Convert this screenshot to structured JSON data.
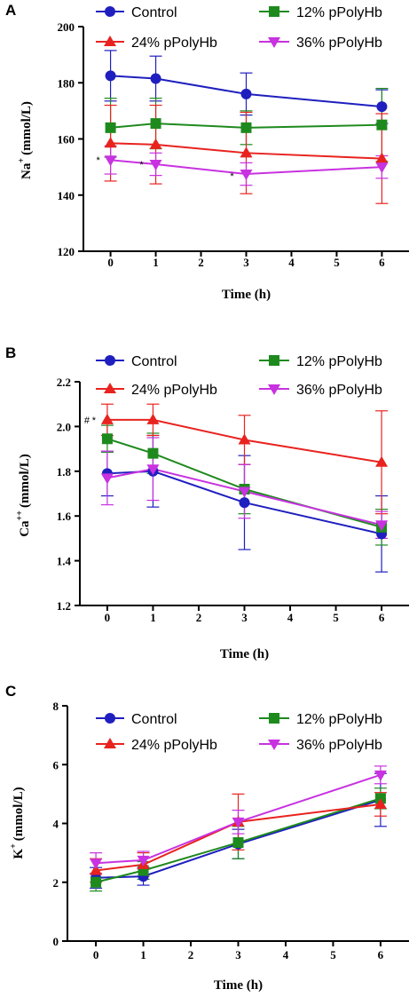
{
  "chart_data": [
    {
      "type": "line",
      "panel": "A",
      "xlabel": "Time (h)",
      "ylabel": "Na",
      "ylabel_sup": "+",
      "ylabel_unit": "(mmol/L)",
      "xlim": [
        -0.6,
        6.6
      ],
      "ylim": [
        120,
        200
      ],
      "xticks": [
        0,
        1,
        2,
        3,
        4,
        5,
        6
      ],
      "yticks": [
        120,
        140,
        160,
        180,
        200
      ],
      "x": [
        0,
        1,
        3,
        6
      ],
      "series": [
        {
          "name": "Control",
          "color": "#1f1fbf",
          "marker": "circle",
          "values": [
            182.5,
            181.5,
            176,
            171.5
          ],
          "errors": [
            9,
            8,
            7.5,
            6
          ]
        },
        {
          "name": "12% pPolyHb",
          "color": "#1e8a1e",
          "marker": "square",
          "values": [
            164,
            165.5,
            164,
            165
          ],
          "errors": [
            10.5,
            9,
            6,
            13
          ]
        },
        {
          "name": "24% pPolyHb",
          "color": "#e8231f",
          "marker": "triangle-up",
          "values": [
            158.5,
            158,
            155,
            153
          ],
          "errors": [
            13.5,
            14,
            14.5,
            16
          ]
        },
        {
          "name": "36% pPolyHb",
          "color": "#c832e0",
          "marker": "triangle-down",
          "values": [
            152.5,
            151,
            147.5,
            150
          ],
          "errors": [
            5,
            4,
            4,
            4
          ]
        }
      ],
      "legend_position": "top",
      "annotations": [
        {
          "text": "*",
          "x": 0,
          "y": 152.5
        },
        {
          "text": "*",
          "x": 1,
          "y": 151
        },
        {
          "text": "*",
          "x": 3,
          "y": 147.5
        }
      ]
    },
    {
      "type": "line",
      "panel": "B",
      "xlabel": "Time (h)",
      "ylabel": "Ca",
      "ylabel_sup": "++",
      "ylabel_unit": "(mmol/L)",
      "xlim": [
        -0.6,
        6.6
      ],
      "ylim": [
        1.2,
        2.2
      ],
      "xticks": [
        0,
        1,
        2,
        3,
        4,
        5,
        6
      ],
      "yticks": [
        "1.2",
        "1.4",
        "1.6",
        "1.8",
        "2.0",
        "2.2"
      ],
      "x": [
        0,
        1,
        3,
        6
      ],
      "series": [
        {
          "name": "Control",
          "color": "#1f1fbf",
          "marker": "circle",
          "values": [
            1.79,
            1.8,
            1.66,
            1.52
          ],
          "errors": [
            0.1,
            0.16,
            0.21,
            0.17
          ]
        },
        {
          "name": "12% pPolyHb",
          "color": "#1e8a1e",
          "marker": "square",
          "values": [
            1.945,
            1.88,
            1.72,
            1.55
          ],
          "errors": [
            0.06,
            0.09,
            0.11,
            0.08
          ]
        },
        {
          "name": "24% pPolyHb",
          "color": "#e8231f",
          "marker": "triangle-up",
          "values": [
            2.03,
            2.03,
            1.94,
            1.84
          ],
          "errors": [
            0.07,
            0.07,
            0.11,
            0.23
          ]
        },
        {
          "name": "36% pPolyHb",
          "color": "#c832e0",
          "marker": "triangle-down",
          "values": [
            1.77,
            1.81,
            1.71,
            1.56
          ],
          "errors": [
            0.12,
            0.14,
            0.12,
            0.06
          ]
        }
      ],
      "legend_position": "top",
      "annotations": [
        {
          "text": "#",
          "x": 0,
          "y": 2.03
        },
        {
          "text": "*",
          "x": 0,
          "y": 2.03
        }
      ]
    },
    {
      "type": "line",
      "panel": "C",
      "xlabel": "Time (h)",
      "ylabel": "K",
      "ylabel_sup": "+",
      "ylabel_unit": "(mmol/L)",
      "xlim": [
        -0.6,
        6.6
      ],
      "ylim": [
        0,
        8
      ],
      "xticks": [
        0,
        1,
        2,
        3,
        4,
        5,
        6
      ],
      "yticks": [
        0,
        2,
        4,
        6,
        8
      ],
      "x": [
        0,
        1,
        3,
        6
      ],
      "series": [
        {
          "name": "Control",
          "color": "#1f1fbf",
          "marker": "circle",
          "values": [
            2.15,
            2.2,
            3.3,
            4.8
          ],
          "errors": [
            0.35,
            0.3,
            0.5,
            0.9
          ]
        },
        {
          "name": "12% pPolyHb",
          "color": "#1e8a1e",
          "marker": "square",
          "values": [
            2.0,
            2.4,
            3.35,
            4.85
          ],
          "errors": [
            0.3,
            0.3,
            0.55,
            0.35
          ]
        },
        {
          "name": "24% pPolyHb",
          "color": "#e8231f",
          "marker": "triangle-up",
          "values": [
            2.4,
            2.6,
            4.05,
            4.65
          ],
          "errors": [
            0.4,
            0.4,
            0.95,
            0.4
          ]
        },
        {
          "name": "36% pPolyHb",
          "color": "#c832e0",
          "marker": "triangle-down",
          "values": [
            2.65,
            2.75,
            4.05,
            5.65
          ],
          "errors": [
            0.35,
            0.3,
            0.4,
            0.3
          ]
        }
      ],
      "legend_position": "top"
    }
  ]
}
